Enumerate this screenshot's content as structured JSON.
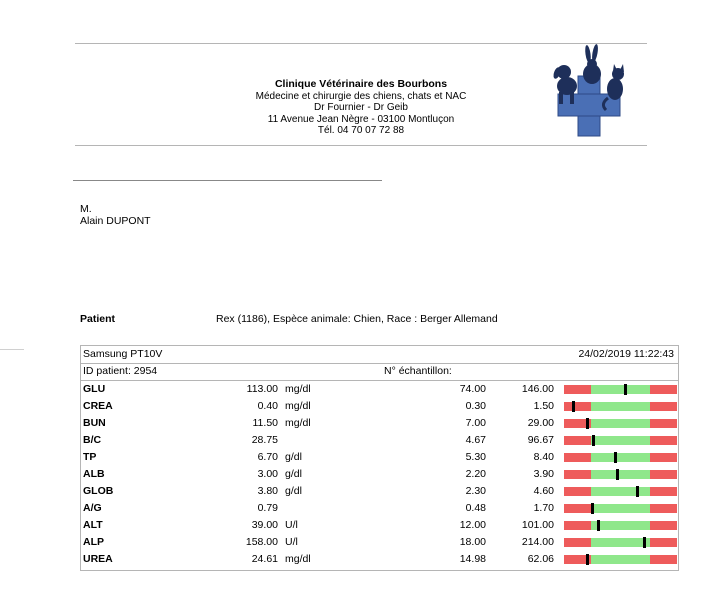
{
  "clinic": {
    "name": "Clinique Vétérinaire des Bourbons",
    "specialty": "Médecine et chirurgie des chiens, chats et NAC",
    "doctors": "Dr Fournier - Dr Geib",
    "address": "11 Avenue Jean Nègre - 03100 Montluçon",
    "phone": "Tél. 04 70 07 72 88"
  },
  "recipient": {
    "title": "M.",
    "name": "Alain DUPONT"
  },
  "patient": {
    "label": "Patient",
    "value": "Rex (1186), Espèce animale: Chien, Race : Berger Allemand"
  },
  "results": {
    "device": "Samsung PT10V",
    "datetime": "24/02/2019 11:22:43",
    "patient_id": "ID patient: 2954",
    "sample_label": "N° échantillon:",
    "colors": {
      "low": "#ee5b5b",
      "normal": "#8fe78b",
      "high": "#ee5b5b",
      "marker": "#000000"
    },
    "rows": [
      {
        "name": "GLU",
        "value": "113.00",
        "unit": "mg/dl",
        "min": "74.00",
        "max": "146.00",
        "level": 0.54
      },
      {
        "name": "CREA",
        "value": "0.40",
        "unit": "mg/dl",
        "min": "0.30",
        "max": "1.50",
        "level": 0.08
      },
      {
        "name": "BUN",
        "value": "11.50",
        "unit": "mg/dl",
        "min": "7.00",
        "max": "29.00",
        "level": 0.2
      },
      {
        "name": "B/C",
        "value": "28.75",
        "unit": "",
        "min": "4.67",
        "max": "96.67",
        "level": 0.26
      },
      {
        "name": "TP",
        "value": "6.70",
        "unit": "g/dl",
        "min": "5.30",
        "max": "8.40",
        "level": 0.45
      },
      {
        "name": "ALB",
        "value": "3.00",
        "unit": "g/dl",
        "min": "2.20",
        "max": "3.90",
        "level": 0.47
      },
      {
        "name": "GLOB",
        "value": "3.80",
        "unit": "g/dl",
        "min": "2.30",
        "max": "4.60",
        "level": 0.65
      },
      {
        "name": "A/G",
        "value": "0.79",
        "unit": "",
        "min": "0.48",
        "max": "1.70",
        "level": 0.25
      },
      {
        "name": "ALT",
        "value": "39.00",
        "unit": "U/l",
        "min": "12.00",
        "max": "101.00",
        "level": 0.3
      },
      {
        "name": "ALP",
        "value": "158.00",
        "unit": "U/l",
        "min": "18.00",
        "max": "214.00",
        "level": 0.71
      },
      {
        "name": "UREA",
        "value": "24.61",
        "unit": "mg/dl",
        "min": "14.98",
        "max": "62.06",
        "level": 0.2
      }
    ]
  }
}
